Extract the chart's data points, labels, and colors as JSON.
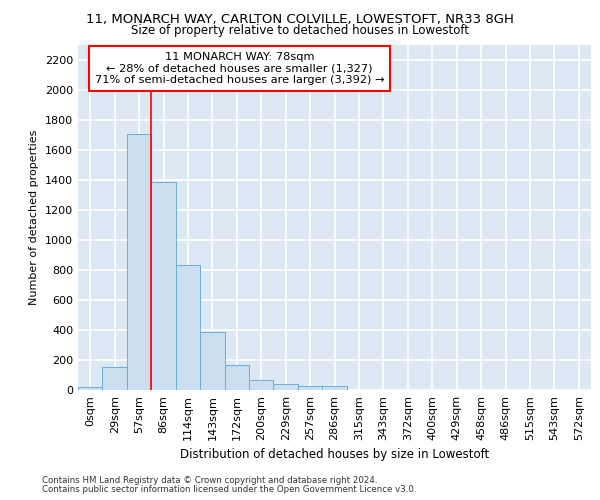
{
  "title_line1": "11, MONARCH WAY, CARLTON COLVILLE, LOWESTOFT, NR33 8GH",
  "title_line2": "Size of property relative to detached houses in Lowestoft",
  "xlabel": "Distribution of detached houses by size in Lowestoft",
  "ylabel": "Number of detached properties",
  "bin_labels": [
    "0sqm",
    "29sqm",
    "57sqm",
    "86sqm",
    "114sqm",
    "143sqm",
    "172sqm",
    "200sqm",
    "229sqm",
    "257sqm",
    "286sqm",
    "315sqm",
    "343sqm",
    "372sqm",
    "400sqm",
    "429sqm",
    "458sqm",
    "486sqm",
    "515sqm",
    "543sqm",
    "572sqm"
  ],
  "bar_heights": [
    20,
    155,
    1710,
    1390,
    835,
    385,
    165,
    65,
    38,
    28,
    28,
    0,
    0,
    0,
    0,
    0,
    0,
    0,
    0,
    0,
    0
  ],
  "bar_color": "#ccdff0",
  "bar_edge_color": "#6aaed6",
  "vline_x": 2.5,
  "vline_color": "red",
  "annotation_text": "11 MONARCH WAY: 78sqm\n← 28% of detached houses are smaller (1,327)\n71% of semi-detached houses are larger (3,392) →",
  "annotation_box_color": "white",
  "annotation_box_edge": "red",
  "ylim": [
    0,
    2300
  ],
  "yticks": [
    0,
    200,
    400,
    600,
    800,
    1000,
    1200,
    1400,
    1600,
    1800,
    2000,
    2200
  ],
  "bg_color": "#dce9f5",
  "grid_color": "white",
  "footer_line1": "Contains HM Land Registry data © Crown copyright and database right 2024.",
  "footer_line2": "Contains public sector information licensed under the Open Government Licence v3.0."
}
